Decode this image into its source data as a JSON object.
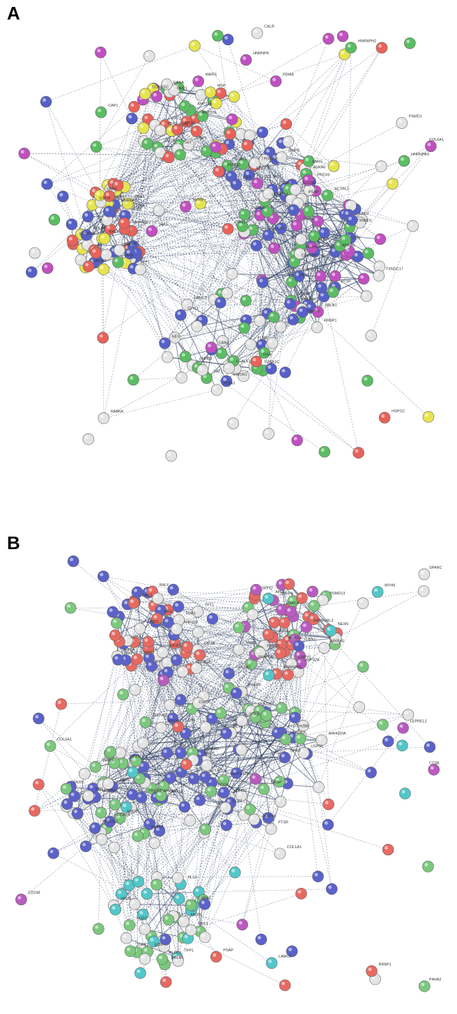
{
  "figure": {
    "panels": [
      {
        "id": "A",
        "letter": "A",
        "colors": {
          "green": "#5bbd63",
          "blue": "#5560c8",
          "red": "#e8625a",
          "yellow": "#e6e44e",
          "magenta": "#c050c0",
          "white": "#e4e4e4",
          "edge": "#2a3a5c"
        },
        "labels": [
          "ANP32E",
          "ANP32A",
          "NME1",
          "SET",
          "EIF5A",
          "TPT1",
          "CUTA",
          "IGBP1",
          "WARS",
          "IRGQ",
          "MVP",
          "APOD",
          "YBX3",
          "NAP1L1",
          "GTF3I",
          "CLIC4",
          "HNRNPDL",
          "RALY",
          "TROVE2",
          "RBM3",
          "SFPQ",
          "ENOPH1",
          "SUB1",
          "VASN",
          "FASN",
          "TPP1",
          "CBX1",
          "RDLBP",
          "SCAT1",
          "TPD52L2",
          "PSMA5",
          "PSMD7",
          "AARS",
          "ANXA6",
          "CCDC6",
          "GMFB",
          "USP5",
          "USP6K",
          "TXNDC17",
          "TXNRD1",
          "PRDX4",
          "PRDX6",
          "ANXA5",
          "ACTBL2",
          "RRBP1",
          "PTSP",
          "COL12A1",
          "LEPREL1",
          "VAP1B",
          "HDGF",
          "DIABLO",
          "NEXN",
          "FBLN1",
          "CAPN2",
          "LCP1",
          "CSN",
          "PSAP",
          "DBN1",
          "AP3D1",
          "SLC3A2",
          "LMNB1",
          "EWSR1",
          "NES",
          "LAMC1",
          "CLIC1",
          "TUBA1C",
          "CANX",
          "VAT1",
          "LGALS1",
          "FLNB",
          "PDIA3",
          "GSN",
          "COL1A1",
          "COL6A1",
          "PDIA4",
          "PPIB",
          "HSPG2",
          "RAB6A",
          "ENO1",
          "PSMD1",
          "TAF1",
          "EIF6",
          "DRG1",
          "CALR",
          "CAP1",
          "MYH9",
          "CORO1C",
          "HNRNPH2",
          "HNRNPA3",
          "HNRNPK"
        ]
      },
      {
        "id": "B",
        "letter": "B",
        "colors": {
          "green": "#7bc87e",
          "blue": "#5b62c9",
          "red": "#e76a62",
          "cyan": "#52c7c9",
          "magenta": "#b95bc0",
          "white": "#e4e4e4",
          "edge": "#2a3a5c"
        },
        "labels": [
          "AP3D1",
          "RALY",
          "EIF4G2",
          "EIF5A",
          "EIF5A2",
          "EIF3A",
          "EIF3CL",
          "TPT1",
          "DRG1",
          "NMT2",
          "SUB1",
          "MVP",
          "IRGQ",
          "ANP32B",
          "ANP32A",
          "ANP32E",
          "NME1",
          "SFPQ",
          "HNRNPDL",
          "NACA",
          "PABPC4",
          "EIF3L",
          "PSMD13",
          "PSMB7",
          "SNRPB",
          "SH3BGRL3",
          "CNPY2",
          "MXRA5",
          "FKBP9",
          "GTF3I",
          "RBM3",
          "TROVE2",
          "HIST1H2BB",
          "HIST1H2BC",
          "MOV10",
          "NASP",
          "USP5K",
          "CSDE1",
          "NUDC",
          "DHD2",
          "PTSR",
          "UCHL1",
          "MAP1B",
          "CLIC1",
          "CLIC4",
          "DPP3",
          "HDGF",
          "ANXA6",
          "DLST",
          "ARHGDIA",
          "DPYSL3",
          "ENO2",
          "RAB1A",
          "SNX5",
          "WARS",
          "AARS",
          "LRPPRC",
          "PRDX3",
          "ANXA5",
          "UGGT1",
          "TPD52L2",
          "PZP",
          "CCDC6",
          "VASN",
          "FASN",
          "TPP1",
          "NUDT",
          "PLS3",
          "CAPN2",
          "ECN",
          "FBLN1",
          "YBX3",
          "IGBP1",
          "CUTA",
          "CD248",
          "RRBP1",
          "COL6A1",
          "COL1A1",
          "COL1A2",
          "SPARC",
          "LEPREL2",
          "NEXN",
          "PSAP",
          "CTSB",
          "DBN1",
          "APOD",
          "PLOD1",
          "P4HA2",
          "LAMC1",
          "MYH9"
        ]
      }
    ]
  }
}
